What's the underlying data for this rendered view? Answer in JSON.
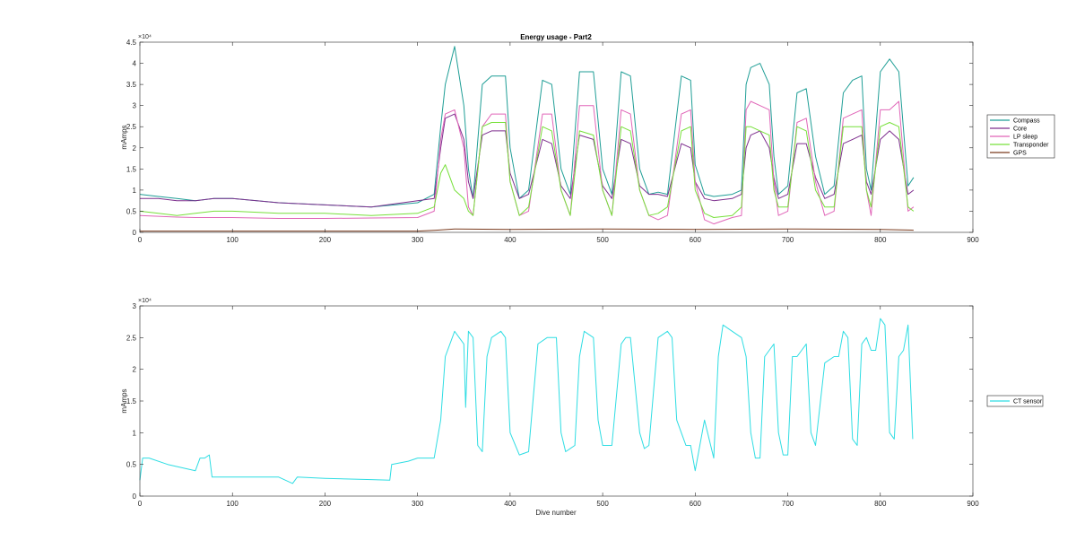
{
  "chart_data": [
    {
      "type": "line",
      "title": "Energy usage - Part2",
      "xlabel": "",
      "ylabel": "mAmps",
      "xlim": [
        0,
        900
      ],
      "ylim": [
        0,
        45000
      ],
      "xticks": [
        "0",
        "100",
        "200",
        "300",
        "400",
        "500",
        "600",
        "700",
        "800",
        "900"
      ],
      "yticks": [
        "0",
        "0.5",
        "1",
        "1.5",
        "2",
        "2.5",
        "3",
        "3.5",
        "4",
        "4.5"
      ],
      "y_exponent": "×10⁴",
      "grid": false,
      "legend_position": "right",
      "series": [
        {
          "name": "Compass",
          "color": "#1f9e96",
          "x": [
            0,
            20,
            40,
            60,
            80,
            100,
            150,
            200,
            250,
            300,
            318,
            325,
            330,
            340,
            350,
            355,
            360,
            370,
            380,
            395,
            400,
            410,
            420,
            435,
            445,
            455,
            465,
            475,
            490,
            500,
            510,
            520,
            530,
            540,
            550,
            560,
            570,
            585,
            595,
            600,
            610,
            620,
            640,
            650,
            655,
            660,
            670,
            680,
            685,
            690,
            700,
            710,
            720,
            730,
            740,
            750,
            760,
            770,
            780,
            785,
            790,
            800,
            810,
            820,
            830,
            836
          ],
          "y": [
            9000,
            8500,
            8000,
            7500,
            8000,
            8000,
            7000,
            6500,
            6000,
            7000,
            9000,
            25000,
            35000,
            44000,
            30000,
            15000,
            8000,
            35000,
            37000,
            37000,
            20000,
            8000,
            10000,
            36000,
            35000,
            15000,
            9000,
            38000,
            38000,
            15000,
            9000,
            38000,
            37000,
            15000,
            9000,
            9500,
            9000,
            37000,
            36000,
            16000,
            9000,
            8500,
            9000,
            10000,
            35000,
            39000,
            40000,
            35000,
            18000,
            9000,
            11000,
            33000,
            34000,
            18000,
            9000,
            11000,
            33000,
            36000,
            37000,
            15000,
            10000,
            38000,
            41000,
            38000,
            11000,
            13000
          ]
        },
        {
          "name": "Core",
          "color": "#7e2f8e",
          "x": [
            0,
            20,
            40,
            60,
            80,
            100,
            150,
            200,
            250,
            300,
            318,
            325,
            330,
            340,
            350,
            355,
            360,
            370,
            380,
            395,
            400,
            410,
            420,
            435,
            445,
            455,
            465,
            475,
            490,
            500,
            510,
            520,
            530,
            540,
            550,
            560,
            570,
            585,
            595,
            600,
            610,
            620,
            640,
            650,
            655,
            660,
            670,
            680,
            685,
            690,
            700,
            710,
            720,
            730,
            740,
            750,
            760,
            770,
            780,
            785,
            790,
            800,
            810,
            820,
            830,
            836
          ],
          "y": [
            8000,
            8000,
            7500,
            7500,
            8000,
            8000,
            7000,
            6500,
            6000,
            7500,
            8000,
            20000,
            27000,
            28000,
            22000,
            12000,
            8000,
            23000,
            24000,
            24000,
            14000,
            8000,
            9000,
            22000,
            21000,
            11000,
            8000,
            23000,
            22000,
            11000,
            8000,
            22000,
            21000,
            11000,
            9000,
            9000,
            8500,
            21000,
            20000,
            12000,
            8000,
            7500,
            8000,
            9000,
            20000,
            23000,
            24000,
            20000,
            13000,
            8000,
            9000,
            21000,
            21000,
            13000,
            8000,
            9000,
            21000,
            22000,
            23000,
            12000,
            9000,
            22000,
            24000,
            22000,
            9000,
            10000
          ]
        },
        {
          "name": "LP sleep",
          "color": "#e065b8",
          "x": [
            0,
            20,
            40,
            60,
            80,
            100,
            150,
            200,
            250,
            300,
            318,
            325,
            330,
            340,
            350,
            355,
            360,
            370,
            380,
            395,
            400,
            410,
            420,
            435,
            445,
            455,
            465,
            475,
            490,
            500,
            510,
            520,
            530,
            540,
            550,
            560,
            570,
            585,
            595,
            600,
            610,
            620,
            640,
            650,
            655,
            660,
            670,
            680,
            685,
            690,
            700,
            710,
            720,
            730,
            740,
            750,
            760,
            770,
            780,
            785,
            790,
            800,
            810,
            820,
            830,
            836
          ],
          "y": [
            4000,
            3800,
            3600,
            3500,
            3500,
            3500,
            3300,
            3300,
            3400,
            3500,
            5000,
            22000,
            28000,
            29000,
            20000,
            6000,
            4000,
            25000,
            28000,
            28000,
            12000,
            4000,
            5000,
            28000,
            28000,
            10000,
            4000,
            30000,
            30000,
            10000,
            4000,
            29000,
            28000,
            10000,
            4000,
            3000,
            4000,
            28000,
            29000,
            12000,
            3000,
            2000,
            3500,
            4000,
            29000,
            31000,
            30000,
            29000,
            12000,
            4000,
            5000,
            26000,
            27000,
            12000,
            4000,
            5000,
            27000,
            28000,
            29000,
            10000,
            4000,
            29000,
            29000,
            31000,
            5000,
            6000
          ]
        },
        {
          "name": "Transponder",
          "color": "#77e03a",
          "x": [
            0,
            20,
            40,
            60,
            80,
            100,
            150,
            200,
            250,
            300,
            318,
            325,
            330,
            340,
            350,
            355,
            360,
            370,
            380,
            395,
            400,
            410,
            420,
            435,
            445,
            455,
            465,
            475,
            490,
            500,
            510,
            520,
            530,
            540,
            550,
            560,
            570,
            585,
            595,
            600,
            610,
            620,
            640,
            650,
            655,
            660,
            670,
            680,
            685,
            690,
            700,
            710,
            720,
            730,
            740,
            750,
            760,
            770,
            780,
            785,
            790,
            800,
            810,
            820,
            830,
            836
          ],
          "y": [
            5000,
            4500,
            4000,
            4500,
            5000,
            5000,
            4500,
            4500,
            4000,
            4500,
            6000,
            14000,
            16000,
            10000,
            8000,
            5000,
            4000,
            25000,
            26000,
            26000,
            12000,
            4000,
            6000,
            25000,
            24000,
            10000,
            4000,
            24000,
            23000,
            10000,
            4000,
            25000,
            24000,
            10000,
            4000,
            4500,
            6000,
            24000,
            25000,
            10000,
            4500,
            3500,
            4000,
            6000,
            25000,
            25000,
            24000,
            23000,
            10000,
            6000,
            6000,
            25000,
            24000,
            10000,
            6000,
            6000,
            25000,
            25000,
            25000,
            10000,
            6000,
            25000,
            26000,
            25000,
            6000,
            5000
          ]
        },
        {
          "name": "GPS",
          "color": "#7a3b1e",
          "x": [
            0,
            100,
            200,
            300,
            320,
            340,
            400,
            500,
            600,
            700,
            800,
            836
          ],
          "y": [
            300,
            300,
            300,
            300,
            500,
            800,
            700,
            800,
            700,
            800,
            700,
            500
          ]
        }
      ]
    },
    {
      "type": "line",
      "title": "",
      "xlabel": "Dive number",
      "ylabel": "mAmps",
      "xlim": [
        0,
        900
      ],
      "ylim": [
        0,
        30000
      ],
      "xticks": [
        "0",
        "100",
        "200",
        "300",
        "400",
        "500",
        "600",
        "700",
        "800",
        "900"
      ],
      "yticks": [
        "0",
        "0.5",
        "1",
        "1.5",
        "2",
        "2.5",
        "3"
      ],
      "y_exponent": "×10⁴",
      "grid": false,
      "legend_position": "right",
      "series": [
        {
          "name": "CT sensor",
          "color": "#2fdde3",
          "x": [
            0,
            3,
            10,
            30,
            60,
            65,
            70,
            75,
            78,
            100,
            150,
            165,
            170,
            200,
            250,
            270,
            272,
            290,
            300,
            318,
            325,
            330,
            340,
            345,
            350,
            352,
            355,
            360,
            365,
            370,
            375,
            380,
            390,
            395,
            400,
            410,
            420,
            430,
            440,
            450,
            455,
            460,
            470,
            475,
            480,
            490,
            495,
            500,
            510,
            520,
            525,
            530,
            540,
            545,
            550,
            560,
            570,
            575,
            580,
            590,
            595,
            600,
            610,
            620,
            625,
            630,
            640,
            650,
            655,
            660,
            665,
            670,
            675,
            680,
            685,
            690,
            695,
            700,
            705,
            710,
            715,
            720,
            725,
            730,
            740,
            750,
            755,
            760,
            765,
            770,
            775,
            780,
            785,
            790,
            795,
            800,
            805,
            810,
            815,
            820,
            825,
            830,
            835
          ],
          "y": [
            2500,
            6000,
            6000,
            5000,
            4000,
            6000,
            6000,
            6500,
            3000,
            3000,
            3000,
            2000,
            3000,
            2800,
            2600,
            2500,
            5000,
            5500,
            6000,
            6000,
            12000,
            22000,
            26000,
            25000,
            24000,
            14000,
            26000,
            25000,
            8000,
            7000,
            22000,
            25000,
            26000,
            25000,
            10000,
            6500,
            7000,
            24000,
            25000,
            25000,
            10000,
            7000,
            8000,
            22000,
            26000,
            25000,
            12000,
            8000,
            8000,
            24000,
            25000,
            25000,
            10000,
            7500,
            8000,
            25000,
            26000,
            25000,
            12000,
            8000,
            8000,
            4000,
            12000,
            6000,
            22000,
            27000,
            26000,
            25000,
            22000,
            10000,
            6000,
            6000,
            22000,
            23000,
            24000,
            10000,
            6500,
            6500,
            22000,
            22000,
            23000,
            24000,
            10000,
            8000,
            21000,
            22000,
            22000,
            26000,
            25000,
            9000,
            8000,
            24000,
            25000,
            23000,
            23000,
            28000,
            27000,
            10000,
            9000,
            22000,
            23000,
            27000,
            9000
          ]
        }
      ]
    }
  ]
}
